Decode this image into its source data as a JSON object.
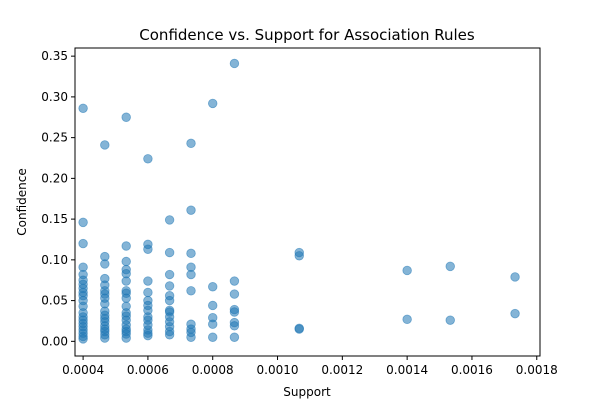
{
  "chart_data": {
    "type": "scatter",
    "title": "Confidence vs. Support for Association Rules",
    "xlabel": "Support",
    "ylabel": "Confidence",
    "xlim": [
      0.000375,
      0.00181
    ],
    "ylim": [
      -0.018,
      0.36
    ],
    "xticks": [
      0.0004,
      0.0006,
      0.0008,
      0.001,
      0.0012,
      0.0014,
      0.0016,
      0.0018
    ],
    "xtick_labels": [
      "0.0004",
      "0.0006",
      "0.0008",
      "0.0010",
      "0.0012",
      "0.0014",
      "0.0016",
      "0.0018"
    ],
    "yticks": [
      0.0,
      0.05,
      0.1,
      0.15,
      0.2,
      0.25,
      0.3,
      0.35
    ],
    "ytick_labels": [
      "0.00",
      "0.05",
      "0.10",
      "0.15",
      "0.20",
      "0.25",
      "0.30",
      "0.35"
    ],
    "grid": false,
    "marker_color": "#1f77b4",
    "marker_alpha": 0.55,
    "points": [
      [
        0.0004,
        0.286
      ],
      [
        0.0004,
        0.146
      ],
      [
        0.0004,
        0.12
      ],
      [
        0.0004,
        0.091
      ],
      [
        0.0004,
        0.082
      ],
      [
        0.0004,
        0.075
      ],
      [
        0.0004,
        0.07
      ],
      [
        0.0004,
        0.065
      ],
      [
        0.0004,
        0.06
      ],
      [
        0.0004,
        0.056
      ],
      [
        0.0004,
        0.05
      ],
      [
        0.0004,
        0.043
      ],
      [
        0.0004,
        0.035
      ],
      [
        0.0004,
        0.03
      ],
      [
        0.0004,
        0.026
      ],
      [
        0.0004,
        0.022
      ],
      [
        0.0004,
        0.018
      ],
      [
        0.0004,
        0.014
      ],
      [
        0.0004,
        0.01
      ],
      [
        0.0004,
        0.006
      ],
      [
        0.0004,
        0.003
      ],
      [
        0.000467,
        0.241
      ],
      [
        0.000467,
        0.104
      ],
      [
        0.000467,
        0.095
      ],
      [
        0.000467,
        0.077
      ],
      [
        0.000467,
        0.069
      ],
      [
        0.000467,
        0.062
      ],
      [
        0.000467,
        0.058
      ],
      [
        0.000467,
        0.053
      ],
      [
        0.000467,
        0.046
      ],
      [
        0.000467,
        0.037
      ],
      [
        0.000467,
        0.032
      ],
      [
        0.000467,
        0.028
      ],
      [
        0.000467,
        0.024
      ],
      [
        0.000467,
        0.019
      ],
      [
        0.000467,
        0.015
      ],
      [
        0.000467,
        0.012
      ],
      [
        0.000467,
        0.008
      ],
      [
        0.000467,
        0.004
      ],
      [
        0.000533,
        0.275
      ],
      [
        0.000533,
        0.117
      ],
      [
        0.000533,
        0.098
      ],
      [
        0.000533,
        0.088
      ],
      [
        0.000533,
        0.083
      ],
      [
        0.000533,
        0.074
      ],
      [
        0.000533,
        0.062
      ],
      [
        0.000533,
        0.059
      ],
      [
        0.000533,
        0.053
      ],
      [
        0.000533,
        0.043
      ],
      [
        0.000533,
        0.035
      ],
      [
        0.000533,
        0.031
      ],
      [
        0.000533,
        0.026
      ],
      [
        0.000533,
        0.02
      ],
      [
        0.000533,
        0.015
      ],
      [
        0.000533,
        0.012
      ],
      [
        0.000533,
        0.009
      ],
      [
        0.000533,
        0.004
      ],
      [
        0.0006,
        0.224
      ],
      [
        0.0006,
        0.119
      ],
      [
        0.0006,
        0.113
      ],
      [
        0.0006,
        0.074
      ],
      [
        0.0006,
        0.06
      ],
      [
        0.0006,
        0.05
      ],
      [
        0.0006,
        0.044
      ],
      [
        0.0006,
        0.038
      ],
      [
        0.0006,
        0.03
      ],
      [
        0.0006,
        0.026
      ],
      [
        0.0006,
        0.02
      ],
      [
        0.0006,
        0.014
      ],
      [
        0.0006,
        0.01
      ],
      [
        0.0006,
        0.007
      ],
      [
        0.000667,
        0.149
      ],
      [
        0.000667,
        0.109
      ],
      [
        0.000667,
        0.082
      ],
      [
        0.000667,
        0.068
      ],
      [
        0.000667,
        0.056
      ],
      [
        0.000667,
        0.05
      ],
      [
        0.000667,
        0.038
      ],
      [
        0.000667,
        0.036
      ],
      [
        0.000667,
        0.03
      ],
      [
        0.000667,
        0.024
      ],
      [
        0.000667,
        0.018
      ],
      [
        0.000667,
        0.012
      ],
      [
        0.000667,
        0.008
      ],
      [
        0.000733,
        0.243
      ],
      [
        0.000733,
        0.161
      ],
      [
        0.000733,
        0.108
      ],
      [
        0.000733,
        0.091
      ],
      [
        0.000733,
        0.082
      ],
      [
        0.000733,
        0.062
      ],
      [
        0.000733,
        0.021
      ],
      [
        0.000733,
        0.015
      ],
      [
        0.000733,
        0.011
      ],
      [
        0.000733,
        0.005
      ],
      [
        0.0008,
        0.292
      ],
      [
        0.0008,
        0.067
      ],
      [
        0.0008,
        0.044
      ],
      [
        0.0008,
        0.029
      ],
      [
        0.0008,
        0.021
      ],
      [
        0.0008,
        0.005
      ],
      [
        0.000867,
        0.341
      ],
      [
        0.000867,
        0.074
      ],
      [
        0.000867,
        0.058
      ],
      [
        0.000867,
        0.039
      ],
      [
        0.000867,
        0.036
      ],
      [
        0.000867,
        0.023
      ],
      [
        0.000867,
        0.019
      ],
      [
        0.000867,
        0.005
      ],
      [
        0.001067,
        0.109
      ],
      [
        0.001067,
        0.105
      ],
      [
        0.001067,
        0.016
      ],
      [
        0.001067,
        0.015
      ],
      [
        0.0014,
        0.087
      ],
      [
        0.0014,
        0.027
      ],
      [
        0.001533,
        0.092
      ],
      [
        0.001533,
        0.026
      ],
      [
        0.001733,
        0.079
      ],
      [
        0.001733,
        0.034
      ]
    ]
  }
}
